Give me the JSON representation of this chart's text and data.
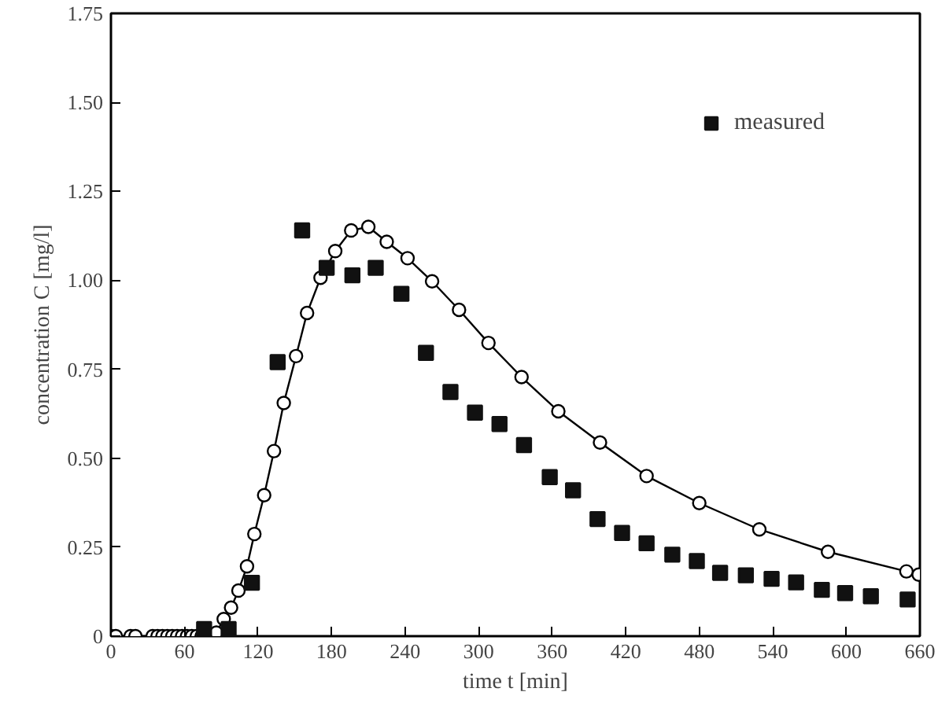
{
  "chart_data": {
    "type": "scatter",
    "xlabel": "time t [min]",
    "ylabel": "concentration C [mg/l]",
    "xlim": [
      0,
      660
    ],
    "xticks": [
      0,
      60,
      120,
      180,
      240,
      300,
      360,
      420,
      480,
      540,
      600,
      660
    ],
    "ylim": [
      0,
      1.75
    ],
    "yticks": [
      0,
      0.25,
      {
        "value": 0.5,
        "label": "0.50"
      },
      0.75,
      {
        "value": 1.0,
        "label": "1.00"
      },
      1.25,
      {
        "value": 1.5,
        "label": "1.50"
      },
      1.75
    ],
    "grid": false,
    "legend": "top right",
    "series": [
      {
        "type": "line",
        "marker": "circle",
        "color": "#000000",
        "x": [
          0,
          4,
          16,
          20,
          34,
          38,
          42,
          46,
          50,
          54,
          58,
          62,
          66,
          70,
          74,
          78,
          82,
          86,
          92,
          98,
          104,
          111,
          117,
          125,
          133,
          141,
          151,
          160,
          171,
          183,
          196,
          210,
          225,
          242,
          262,
          284,
          308,
          335,
          365,
          399,
          437,
          480,
          529,
          585,
          649,
          659
        ],
        "values": [
          0,
          0,
          0,
          0,
          0,
          0,
          0,
          0,
          0,
          0,
          0,
          0,
          0,
          0,
          0,
          0,
          0,
          0.01,
          0.048,
          0.08,
          0.128,
          0.196,
          0.287,
          0.396,
          0.52,
          0.655,
          0.787,
          0.908,
          1.007,
          1.082,
          1.14,
          1.15,
          1.108,
          1.062,
          0.997,
          0.917,
          0.824,
          0.728,
          0.632,
          0.544,
          0.45,
          0.374,
          0.3,
          0.237,
          0.182,
          0.173
        ]
      },
      {
        "marker": "square",
        "name": "measured",
        "color": "#111111",
        "x": [
          76,
          96,
          115,
          136,
          156,
          176,
          197,
          216,
          237,
          257,
          277,
          297,
          317,
          337,
          358,
          377,
          397,
          417,
          437,
          458,
          478,
          497,
          518,
          539,
          559,
          580,
          599,
          620,
          650
        ],
        "values": [
          0.02,
          0.02,
          0.15,
          0.77,
          1.14,
          1.035,
          1.014,
          1.035,
          0.962,
          0.796,
          0.686,
          0.628,
          0.596,
          0.537,
          0.447,
          0.41,
          0.329,
          0.29,
          0.261,
          0.229,
          0.211,
          0.178,
          0.171,
          0.161,
          0.151,
          0.13,
          0.121,
          0.112,
          0.103
        ]
      }
    ]
  }
}
